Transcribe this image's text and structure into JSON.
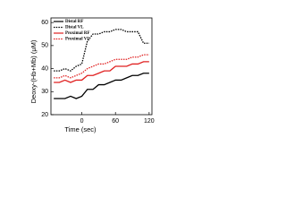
{
  "chart_data": {
    "type": "line",
    "x_label": "Time (sec)",
    "y_label": "Deoxy-(Hb+Mb) (μM)",
    "x": [
      -50,
      -40,
      -30,
      -20,
      -10,
      0,
      10,
      20,
      30,
      40,
      50,
      60,
      70,
      80,
      90,
      100,
      110,
      120
    ],
    "series": [
      {
        "name": "Distal RF",
        "color": "#000000",
        "dash": false,
        "values": [
          27,
          27,
          27,
          28,
          27,
          28,
          31,
          31,
          33,
          33,
          34,
          35,
          35,
          36,
          37,
          37,
          38,
          38
        ]
      },
      {
        "name": "Distal VL",
        "color": "#000000",
        "dash": true,
        "values": [
          39,
          39,
          40,
          39,
          41,
          42,
          52,
          55,
          55,
          56,
          56,
          57,
          57,
          56,
          56,
          56,
          51,
          51
        ]
      },
      {
        "name": "Proximal RF",
        "color": "#e02020",
        "dash": false,
        "values": [
          34,
          34,
          35,
          34,
          35,
          35,
          37,
          37,
          38,
          39,
          39,
          41,
          41,
          41,
          42,
          42,
          43,
          43
        ]
      },
      {
        "name": "Proximal VL",
        "color": "#e02020",
        "dash": true,
        "values": [
          36,
          36,
          37,
          36,
          37,
          38,
          40,
          41,
          42,
          42,
          43,
          44,
          44,
          44,
          45,
          45,
          46,
          46
        ]
      }
    ],
    "xlim": [
      -55,
      125
    ],
    "xticks": [
      0,
      60,
      120
    ],
    "ylim": [
      20,
      62
    ],
    "yticks": [
      20,
      30,
      40,
      50,
      60
    ],
    "legend": "upper-left"
  }
}
